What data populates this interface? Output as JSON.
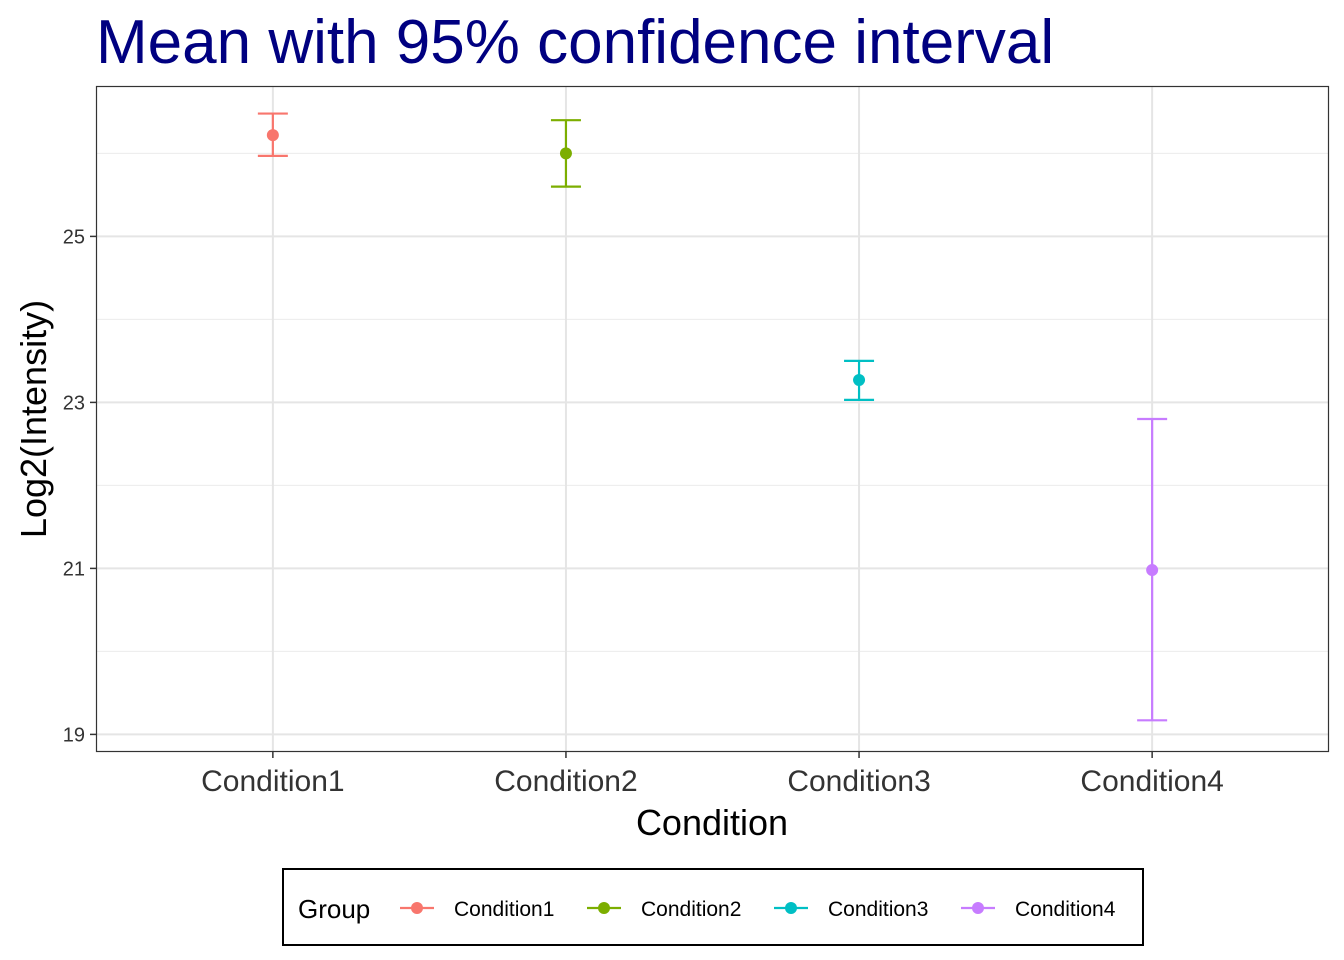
{
  "chart_data": {
    "type": "scatter",
    "title": "Mean with 95% confidence interval",
    "xlabel": "Condition",
    "ylabel": "Log2(Intensity)",
    "categories": [
      "Condition1",
      "Condition2",
      "Condition3",
      "Condition4"
    ],
    "ylim": [
      18.8,
      26.8
    ],
    "yticks": [
      19,
      21,
      23,
      25
    ],
    "ytick_labels": [
      "19",
      "21",
      "23",
      "25"
    ],
    "grid": true,
    "legend": {
      "title": "Group",
      "position": "bottom"
    },
    "series": [
      {
        "name": "Condition1",
        "category": "Condition1",
        "mean": 26.22,
        "lower": 25.97,
        "upper": 26.48,
        "color": "#F8766D"
      },
      {
        "name": "Condition2",
        "category": "Condition2",
        "mean": 26.0,
        "lower": 25.6,
        "upper": 26.4,
        "color": "#7CAE00"
      },
      {
        "name": "Condition3",
        "category": "Condition3",
        "mean": 23.27,
        "lower": 23.03,
        "upper": 23.5,
        "color": "#00BFC4"
      },
      {
        "name": "Condition4",
        "category": "Condition4",
        "mean": 20.98,
        "lower": 19.17,
        "upper": 22.8,
        "color": "#C77CFF"
      }
    ]
  }
}
